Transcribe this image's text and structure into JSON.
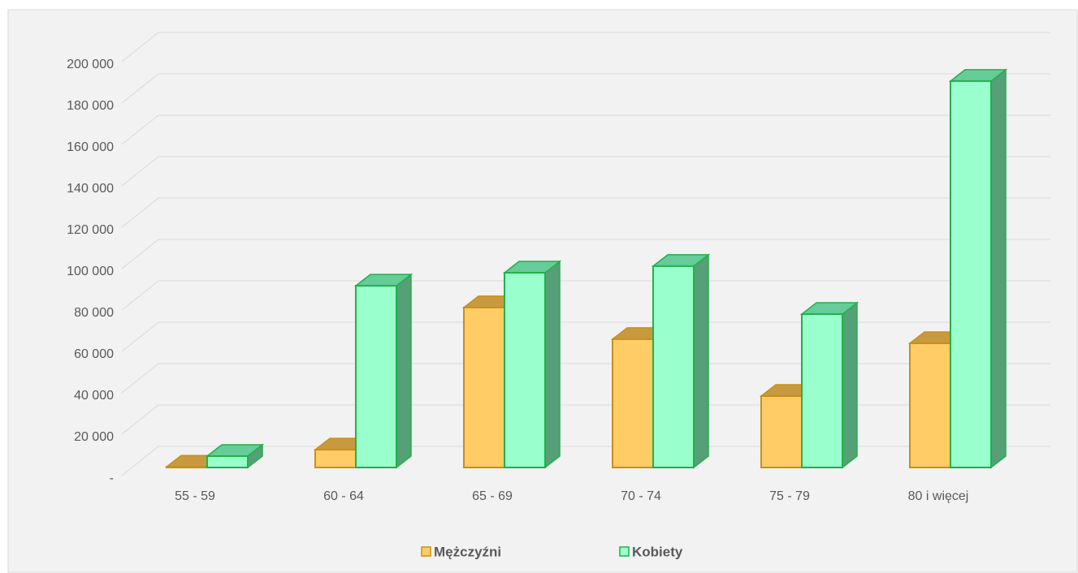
{
  "chart_data": {
    "type": "bar3d",
    "categories": [
      "55 - 59",
      "60 - 64",
      "65 - 69",
      "70 - 74",
      "75 - 79",
      "80 i więcej"
    ],
    "series": [
      {
        "name": "Mężczyźni",
        "color": "#ffcc66",
        "values": [
          300,
          8600,
          77300,
          62000,
          34500,
          60000
        ]
      },
      {
        "name": "Kobiety",
        "color": "#99ffcc",
        "values": [
          5500,
          87800,
          94100,
          97300,
          74100,
          186700
        ]
      }
    ],
    "ylim": [
      0,
      200000
    ],
    "yticks": [
      {
        "value": 0,
        "label": "-"
      },
      {
        "value": 20000,
        "label": "20 000"
      },
      {
        "value": 40000,
        "label": "40 000"
      },
      {
        "value": 60000,
        "label": "60 000"
      },
      {
        "value": 80000,
        "label": "80 000"
      },
      {
        "value": 100000,
        "label": "100 000"
      },
      {
        "value": 120000,
        "label": "120 000"
      },
      {
        "value": 140000,
        "label": "140 000"
      },
      {
        "value": 160000,
        "label": "160 000"
      },
      {
        "value": 180000,
        "label": "180 000"
      },
      {
        "value": 200000,
        "label": "200 000"
      }
    ],
    "grid": true,
    "legend": "bottom"
  }
}
